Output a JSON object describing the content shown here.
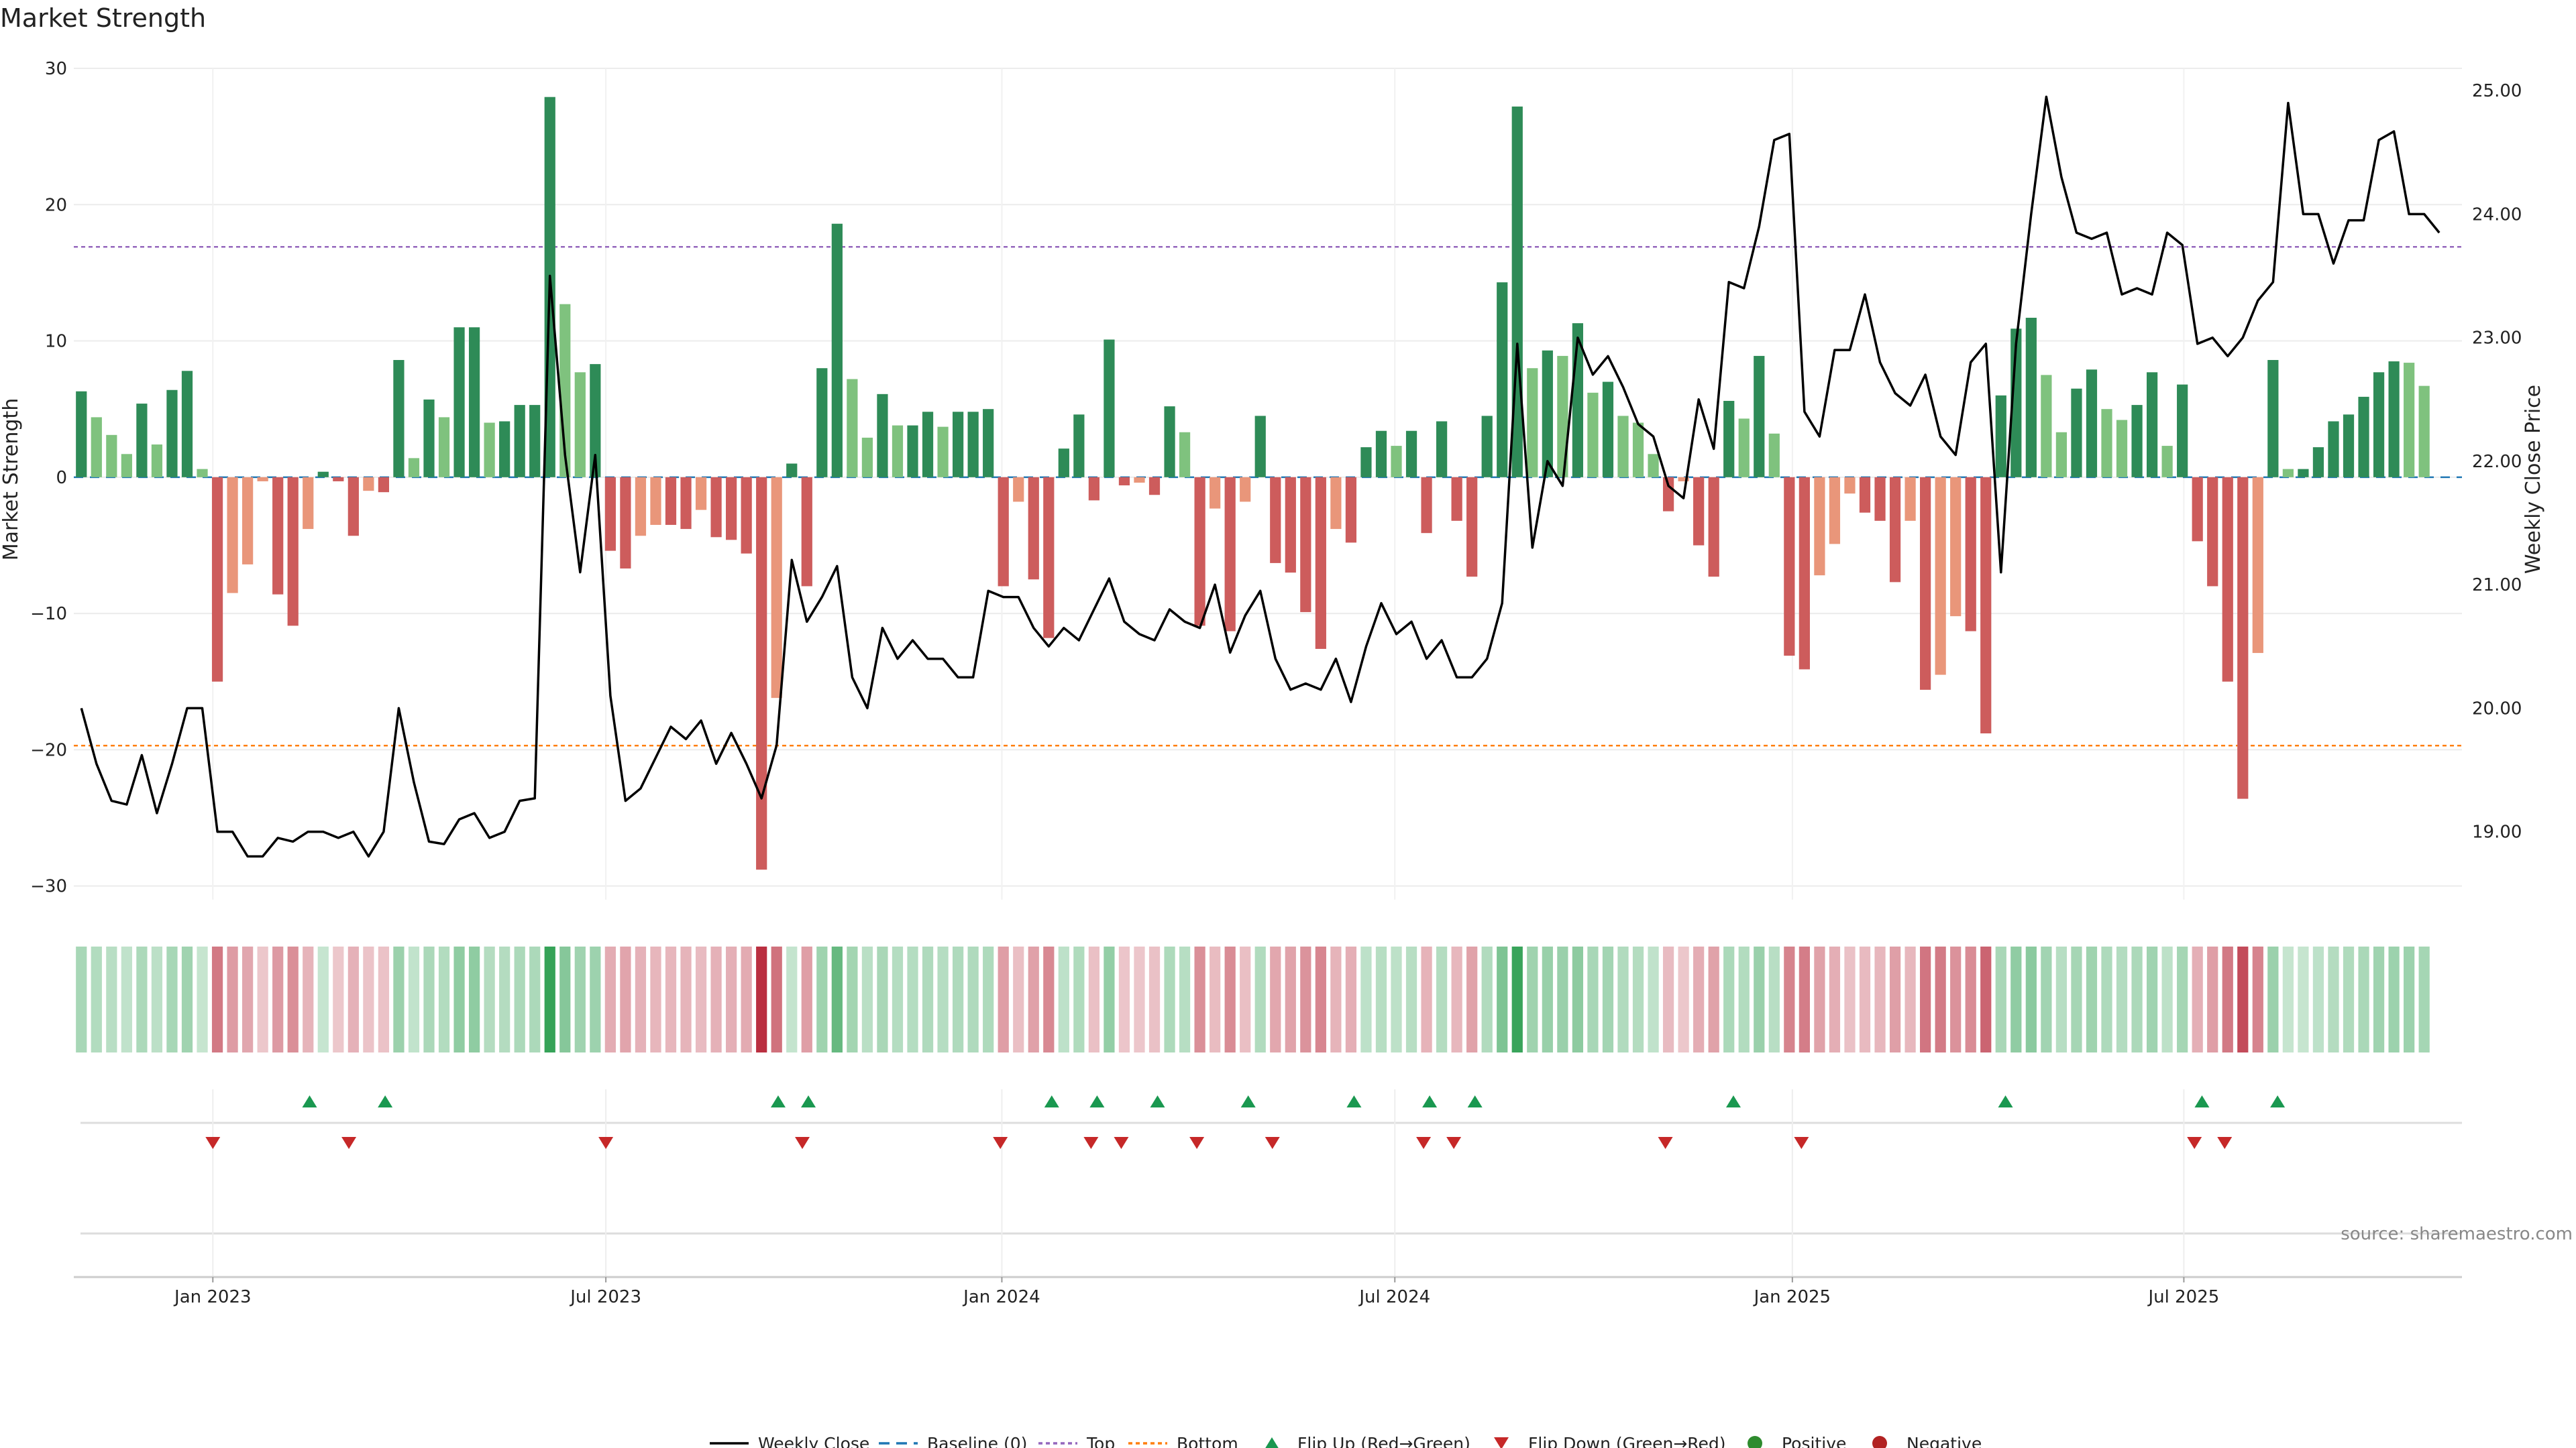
{
  "chart_data": {
    "type": "bar",
    "title": "Market Strength",
    "ylabel": "Market Strength",
    "y2label": "Weekly Close Price",
    "ylim": [
      -31,
      30
    ],
    "y2lim": [
      18.45,
      25.18
    ],
    "yticks": [
      30,
      20,
      10,
      0,
      -10,
      -20,
      -30
    ],
    "yticklabels": [
      "30",
      "20",
      "10",
      "0",
      "−10",
      "−20",
      "−30"
    ],
    "y2ticks": [
      25,
      24,
      23,
      22,
      21,
      20,
      19
    ],
    "y2ticklabels": [
      "25.00",
      "24.00",
      "23.00",
      "22.00",
      "21.00",
      "20.00",
      "19.00"
    ],
    "top_line": 16.9,
    "bottom_line": -19.7,
    "x_start": "2022-11-06",
    "weeks": 158,
    "xticks": [
      {
        "label": "Jan 2023",
        "week": 9.2
      },
      {
        "label": "Jul 2023",
        "week": 35.2
      },
      {
        "label": "Jan 2024",
        "week": 61.4
      },
      {
        "label": "Jul 2024",
        "week": 87.4
      },
      {
        "label": "Jan 2025",
        "week": 113.7
      },
      {
        "label": "Jul 2025",
        "week": 139.6
      }
    ],
    "strength": [
      6.3,
      4.4,
      3.1,
      1.7,
      5.4,
      2.4,
      6.4,
      7.8,
      0.6,
      -15,
      -8.5,
      -6.4,
      -0.3,
      -8.6,
      -10.9,
      -3.8,
      0.4,
      -0.3,
      -4.3,
      -1.0,
      -1.1,
      8.6,
      1.4,
      5.7,
      4.4,
      11.0,
      11.0,
      4.0,
      4.1,
      5.3,
      5.3,
      27.9,
      12.7,
      7.7,
      8.3,
      -5.4,
      -6.7,
      -4.3,
      -3.5,
      -3.5,
      -3.8,
      -2.4,
      -4.4,
      -4.6,
      -5.6,
      -28.8,
      -16.2,
      1.0,
      -8.0,
      8.0,
      18.6,
      7.2,
      2.9,
      6.1,
      3.8,
      3.8,
      4.8,
      3.7,
      4.8,
      4.8,
      5.0,
      -8.0,
      -1.8,
      -7.5,
      -11.8,
      2.1,
      4.6,
      -1.7,
      10.1,
      -0.6,
      -0.4,
      -1.3,
      5.2,
      3.3,
      -10.9,
      -2.3,
      -11.3,
      -1.8,
      4.5,
      -6.3,
      -7.0,
      -9.9,
      -12.6,
      -3.8,
      -4.8,
      2.2,
      3.4,
      2.3,
      3.4,
      -4.1,
      4.1,
      -3.2,
      -7.3,
      4.5,
      14.3,
      27.2,
      8.0,
      9.3,
      8.9,
      11.3,
      6.2,
      7.0,
      4.5,
      4.0,
      1.7,
      -2.5,
      -0.3,
      -5.0,
      -7.3,
      5.6,
      4.3,
      8.9,
      3.2,
      -13.1,
      -14.1,
      -7.2,
      -4.9,
      -1.2,
      -2.6,
      -3.2,
      -7.7,
      -3.2,
      -15.6,
      -14.5,
      -10.2,
      -11.3,
      -18.8,
      6.0,
      10.9,
      11.7,
      7.5,
      3.3,
      6.5,
      7.9,
      5.0,
      4.2,
      5.3,
      7.7,
      2.3,
      6.8,
      -4.7,
      -8.0,
      -15,
      -23.6,
      -12.9,
      8.6,
      0.6,
      0.6,
      2.2,
      4.1,
      4.6,
      5.9,
      7.7,
      8.5,
      8.4,
      6.7
    ],
    "close": [
      20.0,
      19.55,
      19.25,
      19.22,
      19.62,
      19.15,
      19.55,
      20.0,
      20.0,
      19.0,
      19.0,
      18.8,
      18.8,
      18.95,
      18.92,
      19.0,
      19.0,
      18.95,
      19.0,
      18.8,
      19.0,
      20.0,
      19.4,
      18.92,
      18.9,
      19.1,
      19.15,
      18.95,
      19.0,
      19.25,
      19.27,
      23.5,
      22.05,
      21.1,
      22.05,
      20.1,
      19.25,
      19.35,
      19.6,
      19.85,
      19.75,
      19.9,
      19.55,
      19.8,
      19.55,
      19.27,
      19.7,
      21.2,
      20.7,
      20.9,
      21.15,
      20.25,
      20.0,
      20.65,
      20.4,
      20.55,
      20.4,
      20.4,
      20.25,
      20.25,
      20.95,
      20.9,
      20.9,
      20.65,
      20.5,
      20.65,
      20.55,
      20.8,
      21.05,
      20.7,
      20.6,
      20.55,
      20.8,
      20.7,
      20.65,
      21.0,
      20.45,
      20.75,
      20.95,
      20.4,
      20.15,
      20.2,
      20.15,
      20.4,
      20.05,
      20.5,
      20.85,
      20.6,
      20.7,
      20.4,
      20.55,
      20.25,
      20.25,
      20.4,
      20.85,
      22.95,
      21.3,
      22.0,
      21.8,
      23.0,
      22.7,
      22.85,
      22.6,
      22.3,
      22.2,
      21.8,
      21.7,
      22.5,
      22.1,
      23.45,
      23.4,
      23.9,
      24.6,
      24.65,
      22.4,
      22.2,
      22.9,
      22.9,
      23.35,
      22.8,
      22.55,
      22.45,
      22.7,
      22.2,
      22.05,
      22.8,
      22.95,
      21.1,
      22.95,
      24.0,
      24.95,
      24.3,
      23.85,
      23.8,
      23.85,
      23.35,
      23.4,
      23.35,
      23.85,
      23.75,
      22.95,
      23.0,
      22.85,
      23.0,
      23.3,
      23.45,
      24.9,
      24.0,
      24.0,
      23.6,
      23.95,
      23.95,
      24.6,
      24.67,
      24.0,
      24.0,
      23.85
    ],
    "flip_up_weeks": [
      15.6,
      20.6,
      46.6,
      48.6,
      64.7,
      67.7,
      71.7,
      77.7,
      84.7,
      89.7,
      92.7,
      109.8,
      127.8,
      140.8,
      145.8
    ],
    "flip_down_weeks": [
      9.2,
      18.2,
      35.2,
      48.2,
      61.3,
      67.3,
      69.3,
      74.3,
      79.3,
      89.3,
      91.3,
      105.3,
      114.3,
      140.3,
      142.3
    ],
    "legend": [
      "Weekly Close",
      "Baseline (0)",
      "Top",
      "Bottom",
      "Flip Up (Red→Green)",
      "Flip Down (Green→Red)",
      "Positive",
      "Negative"
    ],
    "source": "source: sharemaestro.com",
    "colors": {
      "pos_strong": "#2e8b57",
      "pos_light": "#7fc27e",
      "neg_strong": "#cd5c5c",
      "neg_light": "#e9967a",
      "close": "#000000",
      "baseline": "#1f77b4",
      "top": "#9467bd",
      "bottom": "#ff7f0e",
      "flip_up": "#1a9850",
      "flip_down": "#c62828",
      "positive": "#2e8b2e",
      "negative": "#b22222"
    }
  }
}
